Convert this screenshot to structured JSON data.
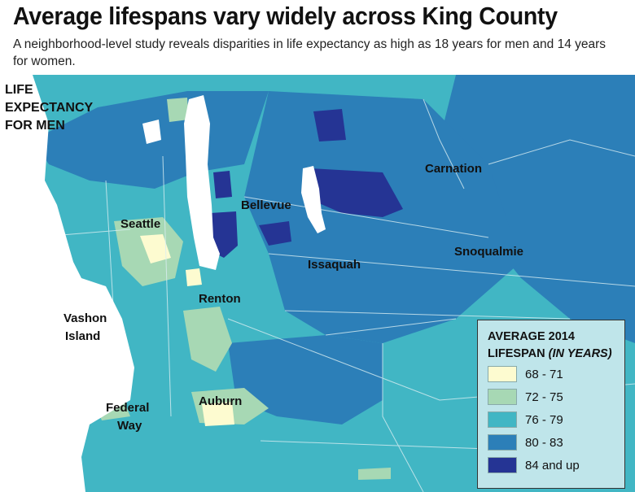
{
  "title": "Average lifespans vary widely across King County",
  "subtitle": "A neighborhood-level study reveals disparities in life expectancy as high as 18 years for men and 14 years for women.",
  "map_title": "LIFE\nEXPECTANCY\nFOR MEN",
  "places": {
    "seattle": "Seattle",
    "bellevue": "Bellevue",
    "carnation": "Carnation",
    "snoqualmie": "Snoqualmie",
    "issaquah": "Issaquah",
    "renton": "Renton",
    "vashon_1": "Vashon",
    "vashon_2": "Island",
    "federal_1": "Federal",
    "federal_2": "Way",
    "auburn": "Auburn"
  },
  "legend": {
    "title_1": "AVERAGE 2014",
    "title_2a": "LIFESPAN",
    "title_2b": "(IN YEARS)",
    "items": [
      {
        "label": "68 - 71",
        "color": "#fdfbd0"
      },
      {
        "label": "72 - 75",
        "color": "#a7d8b4"
      },
      {
        "label": "76 - 79",
        "color": "#41b6c4"
      },
      {
        "label": "80 - 83",
        "color": "#2c7fb8"
      },
      {
        "label": "84 and up",
        "color": "#253494"
      }
    ]
  },
  "colors": {
    "water": "#ffffff",
    "boundary": "#d9eef2"
  }
}
